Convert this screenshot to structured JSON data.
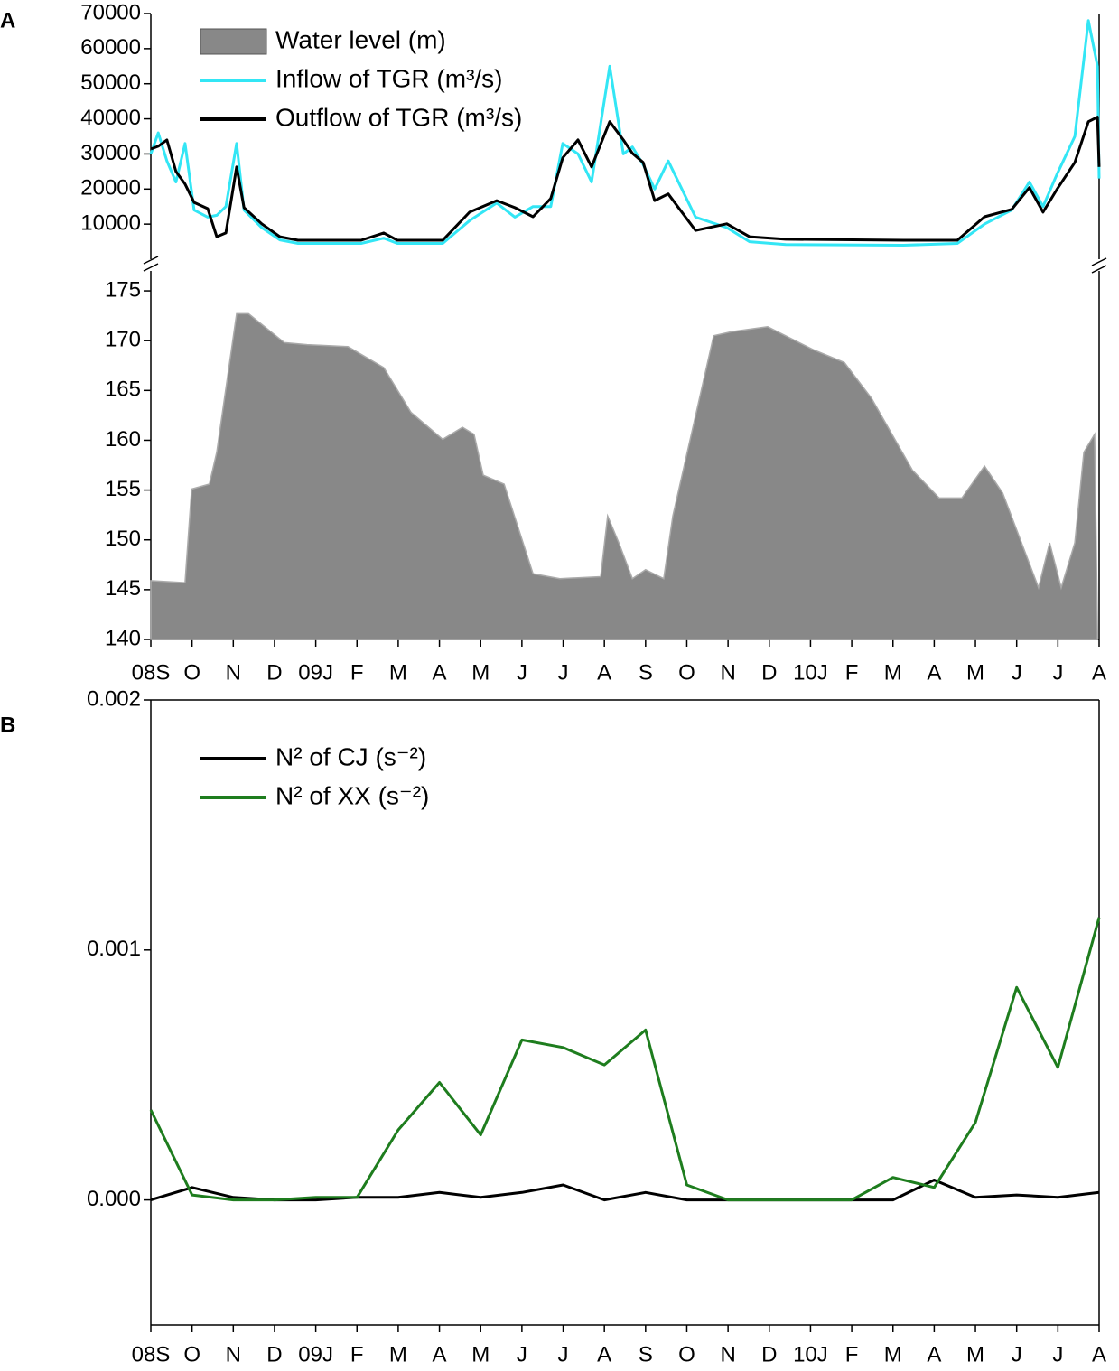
{
  "chart_data": [
    {
      "type": "line",
      "panel_label": "A",
      "legend": "upper left",
      "x": [
        0,
        0.18,
        0.39,
        0.61,
        0.83,
        1.05,
        1.38,
        1.6,
        1.82,
        2.08,
        2.26,
        2.69,
        3.13,
        3.57,
        5.1,
        5.65,
        5.98,
        7.08,
        7.73,
        8.39,
        8.83,
        9.27,
        9.7,
        9.99,
        10.36,
        10.69,
        11.13,
        11.46,
        11.68,
        11.94,
        12.22,
        12.55,
        13.21,
        13.97,
        14.52,
        15.4,
        18.25,
        19.56,
        20.22,
        20.88,
        21.31,
        21.64,
        21.97,
        22.41,
        22.74,
        22.96,
        23
      ],
      "series": [
        {
          "name": "Inflow of TGR (m³/s)",
          "color": "#33e6f5",
          "values": [
            30000,
            36000,
            28000,
            22000,
            33000,
            14000,
            12000,
            12500,
            15000,
            33000,
            14000,
            9000,
            5500,
            4500,
            4500,
            6000,
            4500,
            4500,
            11000,
            16000,
            12000,
            15000,
            15000,
            33000,
            30000,
            22000,
            55000,
            30000,
            32000,
            27000,
            20000,
            28000,
            12000,
            9000,
            5000,
            4200,
            4000,
            4500,
            10000,
            14000,
            22000,
            15000,
            24000,
            35000,
            68000,
            55000,
            23000
          ]
        },
        {
          "name": "Outflow of TGR (m³/s)",
          "color": "#000000",
          "values": [
            31400,
            32200,
            34000,
            25000,
            21400,
            16200,
            14400,
            6400,
            7500,
            26300,
            14700,
            10100,
            6400,
            5400,
            5400,
            7500,
            5400,
            5400,
            13400,
            16700,
            14700,
            12100,
            17300,
            28900,
            34000,
            26300,
            39200,
            34000,
            30200,
            27600,
            16700,
            18600,
            8200,
            10100,
            6400,
            5700,
            5400,
            5400,
            12100,
            14200,
            20400,
            13400,
            19800,
            27600,
            39200,
            40500,
            26300
          ]
        }
      ],
      "xlim": [
        0,
        23
      ],
      "ylim": [
        0,
        70000
      ],
      "yticks": [
        10000,
        20000,
        30000,
        40000,
        50000,
        60000,
        70000
      ]
    },
    {
      "type": "area",
      "x": [
        0,
        0.83,
        0.99,
        1.42,
        1.6,
        2.08,
        2.37,
        3.24,
        3.79,
        4.78,
        5.65,
        6.31,
        7.08,
        7.56,
        7.84,
        8.06,
        8.57,
        9.27,
        9.92,
        10.91,
        11.08,
        11.35,
        11.68,
        12.0,
        12.44,
        12.66,
        13.65,
        14.09,
        14.96,
        16.06,
        16.82,
        17.48,
        18.47,
        19.12,
        19.67,
        20.22,
        20.66,
        21.53,
        21.8,
        22.08,
        22.41,
        22.63,
        22.89,
        22.96
      ],
      "series": [
        {
          "name": "Water level (m)",
          "color": "#888888",
          "values": [
            145.9,
            145.7,
            155.1,
            155.6,
            158.8,
            172.7,
            172.7,
            169.8,
            169.6,
            169.4,
            167.3,
            162.8,
            160.1,
            161.3,
            160.6,
            156.5,
            155.6,
            146.6,
            146.1,
            146.3,
            152.4,
            149.7,
            146.1,
            147,
            146.1,
            152.4,
            170.5,
            170.9,
            171.4,
            169.1,
            167.8,
            164.2,
            157,
            154.2,
            154.2,
            157.4,
            154.7,
            145.2,
            149.7,
            145.2,
            149.7,
            158.8,
            160.6,
            140.7
          ]
        }
      ],
      "xlim": [
        0,
        23
      ],
      "ylim": [
        140,
        177
      ],
      "yticks": [
        140,
        145,
        150,
        155,
        160,
        165,
        170,
        175
      ],
      "xticks": [
        {
          "value": 0,
          "label": "08S"
        },
        {
          "value": 1,
          "label": "O"
        },
        {
          "value": 2,
          "label": "N"
        },
        {
          "value": 3,
          "label": "D"
        },
        {
          "value": 4,
          "label": "09J"
        },
        {
          "value": 5,
          "label": "F"
        },
        {
          "value": 6,
          "label": "M"
        },
        {
          "value": 7,
          "label": "A"
        },
        {
          "value": 8,
          "label": "M"
        },
        {
          "value": 9,
          "label": "J"
        },
        {
          "value": 10,
          "label": "J"
        },
        {
          "value": 11,
          "label": "A"
        },
        {
          "value": 12,
          "label": "S"
        },
        {
          "value": 13,
          "label": "O"
        },
        {
          "value": 14,
          "label": "N"
        },
        {
          "value": 15,
          "label": "D"
        },
        {
          "value": 16,
          "label": "10J"
        },
        {
          "value": 17,
          "label": "F"
        },
        {
          "value": 18,
          "label": "M"
        },
        {
          "value": 19,
          "label": "A"
        },
        {
          "value": 20,
          "label": "M"
        },
        {
          "value": 21,
          "label": "J"
        },
        {
          "value": 22,
          "label": "J"
        },
        {
          "value": 23,
          "label": "A"
        }
      ]
    },
    {
      "type": "line",
      "panel_label": "B",
      "legend": "upper left",
      "categories": [
        "08S",
        "O",
        "N",
        "D",
        "09J",
        "F",
        "M",
        "A",
        "M",
        "J",
        "J",
        "A",
        "S",
        "O",
        "N",
        "D",
        "10J",
        "F",
        "M",
        "A",
        "M",
        "J",
        "J",
        "A"
      ],
      "series": [
        {
          "name": "N² of CJ (s⁻²)",
          "color": "#000000",
          "values": [
            0,
            5e-05,
            1e-05,
            0,
            0,
            1e-05,
            1e-05,
            3e-05,
            1e-05,
            3e-05,
            6e-05,
            0,
            3e-05,
            0,
            0,
            0,
            0,
            0,
            0,
            8e-05,
            1e-05,
            2e-05,
            1e-05,
            3e-05
          ]
        },
        {
          "name": "N² of XX (s⁻²)",
          "color": "#1e7d1e",
          "values": [
            0.00036,
            2e-05,
            0,
            0,
            1e-05,
            1e-05,
            0.00028,
            0.00047,
            0.00026,
            0.00064,
            0.00061,
            0.00054,
            0.00068,
            6e-05,
            0,
            0,
            0,
            0,
            9e-05,
            5e-05,
            0.00031,
            0.00085,
            0.00053,
            0.00113
          ]
        }
      ],
      "ylim": [
        -0.0005,
        0.002
      ],
      "yticks": [
        {
          "value": 0,
          "label": "0.000"
        },
        0.001,
        0.002
      ]
    }
  ]
}
